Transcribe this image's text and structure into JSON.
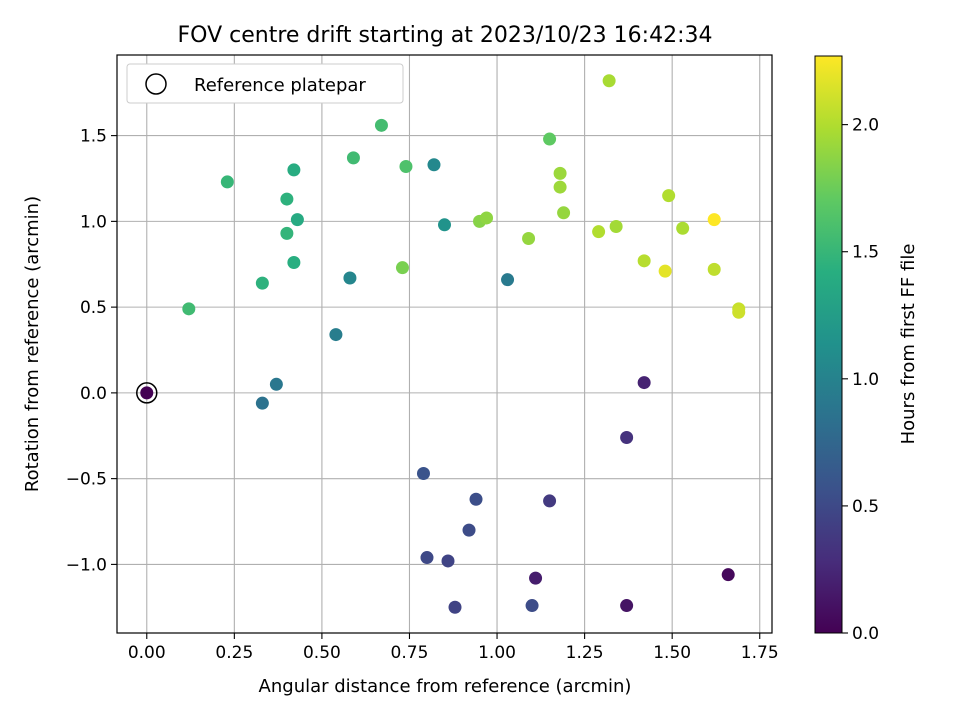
{
  "chart_data": {
    "type": "scatter",
    "title": "FOV centre drift starting at 2023/10/23 16:42:34",
    "xlabel": "Angular distance from reference (arcmin)",
    "ylabel": "Rotation from reference (arcmin)",
    "xlim": [
      -0.085,
      1.785
    ],
    "ylim": [
      -1.4,
      1.97
    ],
    "xticks": [
      "0.00",
      "0.25",
      "0.50",
      "0.75",
      "1.00",
      "1.25",
      "1.50",
      "1.75"
    ],
    "yticks": [
      "−1.0",
      "−0.5",
      "0.0",
      "0.5",
      "1.0",
      "1.5"
    ],
    "grid": true,
    "legend": {
      "location": "upper-left",
      "entries": [
        "Reference platepar"
      ]
    },
    "colorbar": {
      "label": "Hours from first FF file",
      "colormap": "viridis",
      "range": [
        0.0,
        2.27
      ],
      "ticks": [
        "0.0",
        "0.5",
        "1.0",
        "1.5",
        "2.0"
      ]
    },
    "reference_point": {
      "x": 0.0,
      "y": 0.0
    },
    "points": [
      {
        "x": 0.0,
        "y": 0.0,
        "t": 0.0
      },
      {
        "x": 1.66,
        "y": -1.06,
        "t": 0.05
      },
      {
        "x": 1.37,
        "y": -1.24,
        "t": 0.12
      },
      {
        "x": 1.11,
        "y": -1.08,
        "t": 0.18
      },
      {
        "x": 1.42,
        "y": 0.06,
        "t": 0.22
      },
      {
        "x": 1.37,
        "y": -0.26,
        "t": 0.32
      },
      {
        "x": 1.15,
        "y": -0.63,
        "t": 0.38
      },
      {
        "x": 0.88,
        "y": -1.25,
        "t": 0.45
      },
      {
        "x": 0.86,
        "y": -0.98,
        "t": 0.46
      },
      {
        "x": 0.8,
        "y": -0.96,
        "t": 0.5
      },
      {
        "x": 0.92,
        "y": -0.8,
        "t": 0.52
      },
      {
        "x": 1.1,
        "y": -1.24,
        "t": 0.52
      },
      {
        "x": 0.94,
        "y": -0.62,
        "t": 0.54
      },
      {
        "x": 0.79,
        "y": -0.47,
        "t": 0.58
      },
      {
        "x": 0.33,
        "y": -0.06,
        "t": 0.85
      },
      {
        "x": 0.37,
        "y": 0.05,
        "t": 0.9
      },
      {
        "x": 0.54,
        "y": 0.34,
        "t": 0.95
      },
      {
        "x": 1.03,
        "y": 0.66,
        "t": 0.92
      },
      {
        "x": 0.58,
        "y": 0.67,
        "t": 1.03
      },
      {
        "x": 0.82,
        "y": 1.33,
        "t": 1.05
      },
      {
        "x": 0.85,
        "y": 0.98,
        "t": 1.15
      },
      {
        "x": 0.43,
        "y": 1.01,
        "t": 1.38
      },
      {
        "x": 0.42,
        "y": 1.3,
        "t": 1.4
      },
      {
        "x": 0.42,
        "y": 0.76,
        "t": 1.42
      },
      {
        "x": 0.4,
        "y": 1.13,
        "t": 1.45
      },
      {
        "x": 0.4,
        "y": 0.93,
        "t": 1.48
      },
      {
        "x": 0.33,
        "y": 0.64,
        "t": 1.45
      },
      {
        "x": 0.23,
        "y": 1.23,
        "t": 1.5
      },
      {
        "x": 0.12,
        "y": 0.49,
        "t": 1.55
      },
      {
        "x": 0.59,
        "y": 1.37,
        "t": 1.55
      },
      {
        "x": 0.67,
        "y": 1.56,
        "t": 1.57
      },
      {
        "x": 0.74,
        "y": 1.32,
        "t": 1.62
      },
      {
        "x": 1.15,
        "y": 1.48,
        "t": 1.7
      },
      {
        "x": 0.73,
        "y": 0.73,
        "t": 1.8
      },
      {
        "x": 0.95,
        "y": 1.0,
        "t": 1.85
      },
      {
        "x": 0.97,
        "y": 1.02,
        "t": 1.88
      },
      {
        "x": 1.09,
        "y": 0.9,
        "t": 1.9
      },
      {
        "x": 1.19,
        "y": 1.05,
        "t": 1.9
      },
      {
        "x": 1.18,
        "y": 1.28,
        "t": 1.92
      },
      {
        "x": 1.18,
        "y": 1.2,
        "t": 1.93
      },
      {
        "x": 1.34,
        "y": 0.97,
        "t": 1.95
      },
      {
        "x": 1.32,
        "y": 1.82,
        "t": 1.97
      },
      {
        "x": 1.29,
        "y": 0.94,
        "t": 2.0
      },
      {
        "x": 1.53,
        "y": 0.96,
        "t": 1.98
      },
      {
        "x": 1.49,
        "y": 1.15,
        "t": 2.0
      },
      {
        "x": 1.42,
        "y": 0.77,
        "t": 2.02
      },
      {
        "x": 1.62,
        "y": 0.72,
        "t": 2.05
      },
      {
        "x": 1.69,
        "y": 0.49,
        "t": 2.08
      },
      {
        "x": 1.69,
        "y": 0.47,
        "t": 2.1
      },
      {
        "x": 1.48,
        "y": 0.71,
        "t": 2.18
      },
      {
        "x": 1.62,
        "y": 1.01,
        "t": 2.27
      }
    ]
  }
}
